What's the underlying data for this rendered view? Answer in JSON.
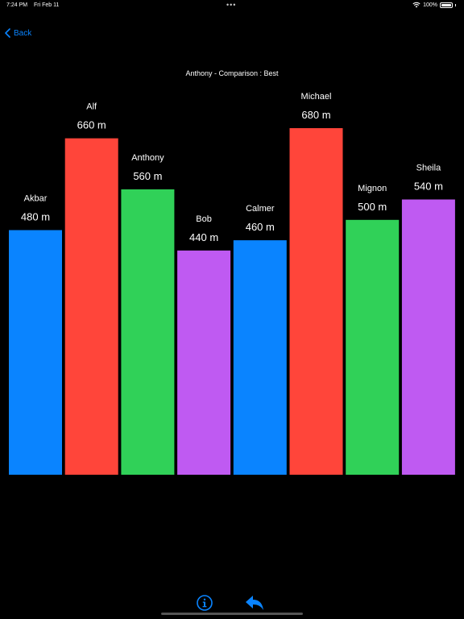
{
  "status_bar": {
    "time": "7:24 PM",
    "date": "Fri Feb 11",
    "battery_percent": "100%"
  },
  "nav": {
    "back_label": "Back"
  },
  "colors": {
    "blue": "#0a84ff",
    "red": "#ff453a",
    "green": "#30d158",
    "purple": "#bf5af2"
  },
  "chart_data": {
    "type": "bar",
    "title": "Anthony - Comparison : Best",
    "categories": [
      "Akbar",
      "Alf",
      "Anthony",
      "Bob",
      "Calmer",
      "Michael",
      "Mignon",
      "Sheila"
    ],
    "values": [
      480,
      660,
      560,
      440,
      460,
      680,
      500,
      540
    ],
    "value_labels": [
      "480 m",
      "660 m",
      "560 m",
      "440 m",
      "460 m",
      "680 m",
      "500 m",
      "540 m"
    ],
    "bar_colors": [
      "#0a84ff",
      "#ff453a",
      "#30d158",
      "#bf5af2",
      "#0a84ff",
      "#ff453a",
      "#30d158",
      "#bf5af2"
    ],
    "ylim": [
      0,
      680
    ],
    "grid": false
  },
  "toolbar": {
    "icons": [
      "info-circle-icon",
      "reply-arrow-icon"
    ]
  }
}
